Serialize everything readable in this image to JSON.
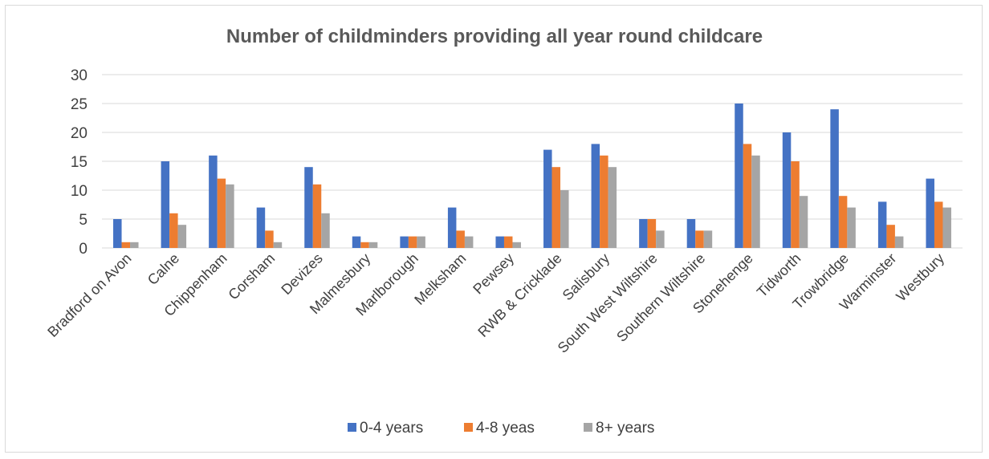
{
  "chart_data": {
    "type": "bar",
    "title": "Number of childminders providing all year round childcare",
    "xlabel": "",
    "ylabel": "",
    "ylim": [
      0,
      30
    ],
    "yticks": [
      0,
      5,
      10,
      15,
      20,
      25,
      30
    ],
    "grid": true,
    "legend_position": "bottom",
    "categories": [
      "Bradford on Avon",
      "Calne",
      "Chippenham",
      "Corsham",
      "Devizes",
      "Malmesbury",
      "Marlborough",
      "Melksham",
      "Pewsey",
      "RWB & Cricklade",
      "Salisbury",
      "South West Wiltshire",
      "Southern Wiltshire",
      "Stonehenge",
      "Tidworth",
      "Trowbridge",
      "Warminster",
      "Westbury"
    ],
    "series": [
      {
        "name": "0-4 years",
        "color": "#4472c4",
        "values": [
          5,
          15,
          16,
          7,
          14,
          2,
          2,
          7,
          2,
          17,
          18,
          5,
          5,
          25,
          20,
          24,
          8,
          12
        ]
      },
      {
        "name": "4-8 yeas",
        "color": "#ed7d31",
        "values": [
          1,
          6,
          12,
          3,
          11,
          1,
          2,
          3,
          2,
          14,
          16,
          5,
          3,
          18,
          15,
          9,
          4,
          8
        ]
      },
      {
        "name": "8+ years",
        "color": "#a5a5a5",
        "values": [
          1,
          4,
          11,
          1,
          6,
          1,
          2,
          2,
          1,
          10,
          14,
          3,
          3,
          16,
          9,
          7,
          2,
          7
        ]
      }
    ]
  }
}
